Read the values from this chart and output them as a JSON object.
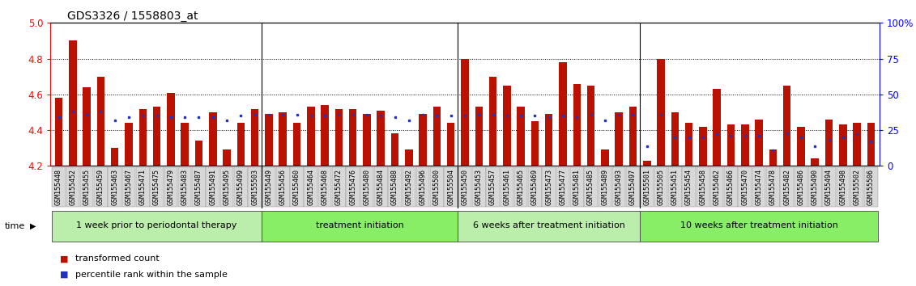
{
  "title": "GDS3326 / 1558803_at",
  "samples": [
    "GSM155448",
    "GSM155452",
    "GSM155455",
    "GSM155459",
    "GSM155463",
    "GSM155467",
    "GSM155471",
    "GSM155475",
    "GSM155479",
    "GSM155483",
    "GSM155487",
    "GSM155491",
    "GSM155495",
    "GSM155499",
    "GSM155503",
    "GSM155449",
    "GSM155456",
    "GSM155460",
    "GSM155464",
    "GSM155468",
    "GSM155472",
    "GSM155476",
    "GSM155480",
    "GSM155484",
    "GSM155488",
    "GSM155492",
    "GSM155496",
    "GSM155500",
    "GSM155504",
    "GSM155450",
    "GSM155453",
    "GSM155457",
    "GSM155461",
    "GSM155465",
    "GSM155469",
    "GSM155473",
    "GSM155477",
    "GSM155481",
    "GSM155485",
    "GSM155489",
    "GSM155493",
    "GSM155497",
    "GSM155501",
    "GSM155505",
    "GSM155451",
    "GSM155454",
    "GSM155458",
    "GSM155462",
    "GSM155466",
    "GSM155470",
    "GSM155474",
    "GSM155478",
    "GSM155482",
    "GSM155486",
    "GSM155490",
    "GSM155494",
    "GSM155498",
    "GSM155502",
    "GSM155506"
  ],
  "transformed_counts": [
    4.58,
    4.9,
    4.64,
    4.7,
    4.3,
    4.44,
    4.52,
    4.53,
    4.61,
    4.44,
    4.34,
    4.5,
    4.29,
    4.44,
    4.52,
    4.49,
    4.5,
    4.44,
    4.53,
    4.54,
    4.52,
    4.52,
    4.49,
    4.51,
    4.38,
    4.29,
    4.49,
    4.53,
    4.44,
    4.8,
    4.53,
    4.7,
    4.65,
    4.53,
    4.45,
    4.49,
    4.78,
    4.66,
    4.65,
    4.29,
    4.5,
    4.53,
    4.23,
    4.8,
    4.5,
    4.44,
    4.42,
    4.63,
    4.43,
    4.43,
    4.46,
    4.29,
    4.65,
    4.42,
    4.24,
    4.46,
    4.43,
    4.44,
    4.44
  ],
  "percentile_ranks": [
    34,
    38,
    36,
    38,
    32,
    34,
    35,
    35,
    34,
    34,
    34,
    34,
    32,
    35,
    36,
    36,
    36,
    36,
    35,
    35,
    36,
    36,
    36,
    35,
    34,
    32,
    36,
    35,
    35,
    35,
    36,
    36,
    35,
    35,
    35,
    34,
    35,
    34,
    36,
    32,
    36,
    36,
    14,
    36,
    20,
    20,
    20,
    22,
    21,
    21,
    21,
    11,
    23,
    20,
    14,
    18,
    20,
    22,
    17
  ],
  "group_boundaries": [
    0,
    15,
    29,
    42,
    59
  ],
  "group_labels": [
    "1 week prior to periodontal therapy",
    "treatment initiation",
    "6 weeks after treatment initiation",
    "10 weeks after treatment initiation"
  ],
  "group_colors": [
    "#bbeeaa",
    "#88ee66",
    "#bbeeaa",
    "#88ee66"
  ],
  "ylim": [
    4.2,
    5.0
  ],
  "y_ticks": [
    4.2,
    4.4,
    4.6,
    4.8,
    5.0
  ],
  "right_yticks": [
    0,
    25,
    50,
    75,
    100
  ],
  "right_ytick_labels": [
    "0",
    "25",
    "50",
    "75",
    "100%"
  ],
  "bar_color": "#bb1100",
  "dot_color": "#2233bb",
  "bar_width": 0.55,
  "title_fontsize": 10,
  "tick_fontsize": 6,
  "label_fontsize": 8,
  "legend_fontsize": 8
}
